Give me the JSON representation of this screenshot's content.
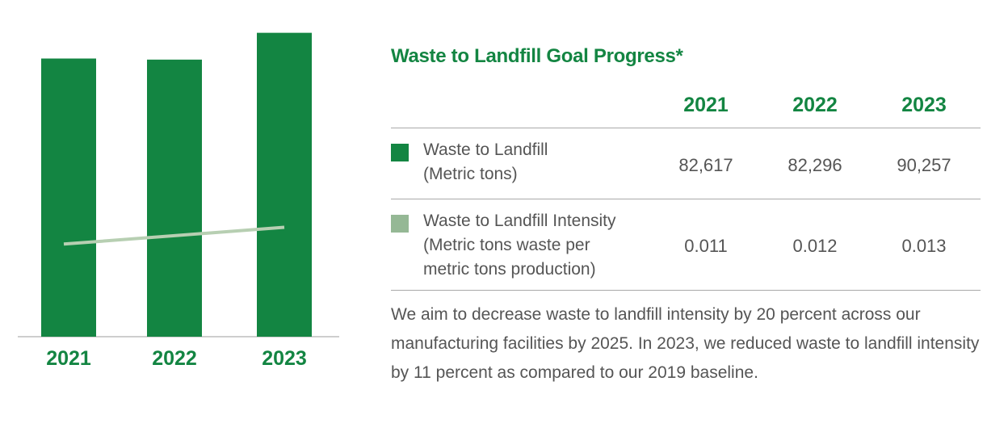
{
  "chart_data": {
    "type": "bar",
    "categories": [
      "2021",
      "2022",
      "2023"
    ],
    "series": [
      {
        "name": "Waste to Landfill",
        "values": [
          82617,
          82296,
          90257
        ],
        "color": "#138542"
      },
      {
        "name": "Waste to Landfill Intensity",
        "values": [
          0.011,
          0.012,
          0.013
        ],
        "color": "#b7cfb2",
        "render": "line"
      }
    ],
    "ylim": [
      0,
      100000
    ],
    "y2lim": [
      0,
      0.04
    ],
    "grid": false
  },
  "table": {
    "title": "Waste to Landfill Goal Progress*",
    "years": [
      "2021",
      "2022",
      "2023"
    ],
    "rows": [
      {
        "label_lines": [
          "Waste to Landfill",
          "(Metric tons)"
        ],
        "swatch_color": "#138542",
        "values": [
          "82,617",
          "82,296",
          "90,257"
        ]
      },
      {
        "label_lines": [
          "Waste to Landfill Intensity",
          "(Metric tons waste per",
          "metric tons production)"
        ],
        "swatch_color": "#95b895",
        "values": [
          "0.011",
          "0.012",
          "0.013"
        ]
      }
    ],
    "note": "We aim to decrease waste to landfill intensity by 20 percent across our manufacturing facilities by 2025. In 2023, we reduced waste to landfill intensity by 11 percent as compared to our 2019 baseline."
  }
}
